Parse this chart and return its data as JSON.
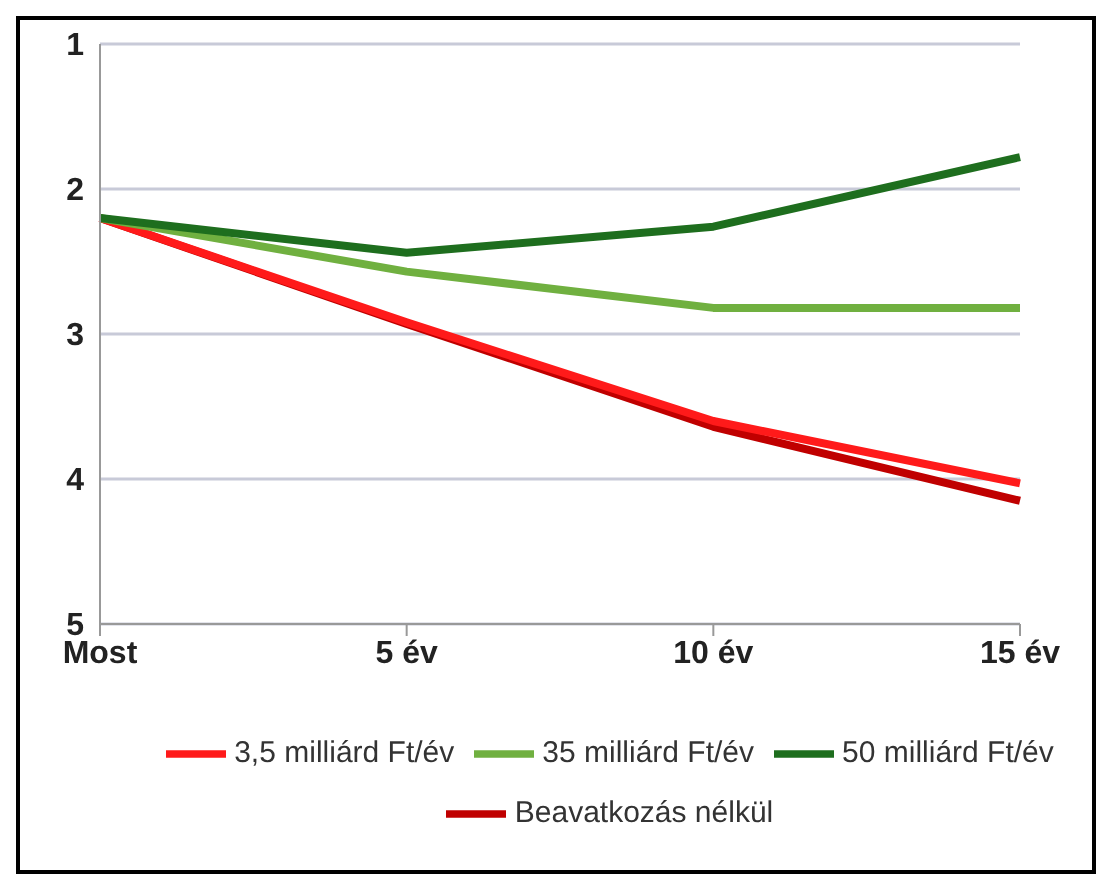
{
  "chart_data": {
    "type": "line",
    "categories": [
      "Most",
      "5 év",
      "10 év",
      "15 év"
    ],
    "series": [
      {
        "name": "Beavatkozás nélkül",
        "color": "#c00000",
        "values": [
          2.2,
          2.93,
          3.64,
          4.15
        ]
      },
      {
        "name": "3,5 milliárd Ft/év",
        "color": "#ff1a1a",
        "values": [
          2.2,
          2.92,
          3.6,
          4.03
        ]
      },
      {
        "name": "35 milliárd Ft/év",
        "color": "#70b040",
        "values": [
          2.2,
          2.57,
          2.82,
          2.82
        ]
      },
      {
        "name": "50 milliárd Ft/év",
        "color": "#1e6e1e",
        "values": [
          2.2,
          2.44,
          2.26,
          1.78
        ]
      }
    ],
    "ylim": [
      5,
      1
    ],
    "yticks": [
      1,
      2,
      3,
      4,
      5
    ],
    "grid": "y",
    "legend": "bottom",
    "marker": "none",
    "line_style": "solid"
  }
}
